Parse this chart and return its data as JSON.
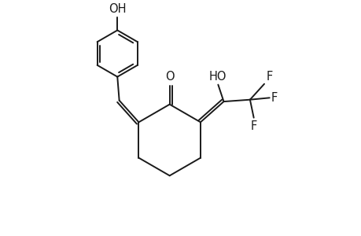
{
  "background_color": "#ffffff",
  "line_color": "#1a1a1a",
  "line_width": 1.4,
  "font_size": 9.5,
  "fig_width": 4.6,
  "fig_height": 3.0,
  "dpi": 100,
  "xlim": [
    0,
    9
  ],
  "ylim": [
    0,
    6
  ]
}
